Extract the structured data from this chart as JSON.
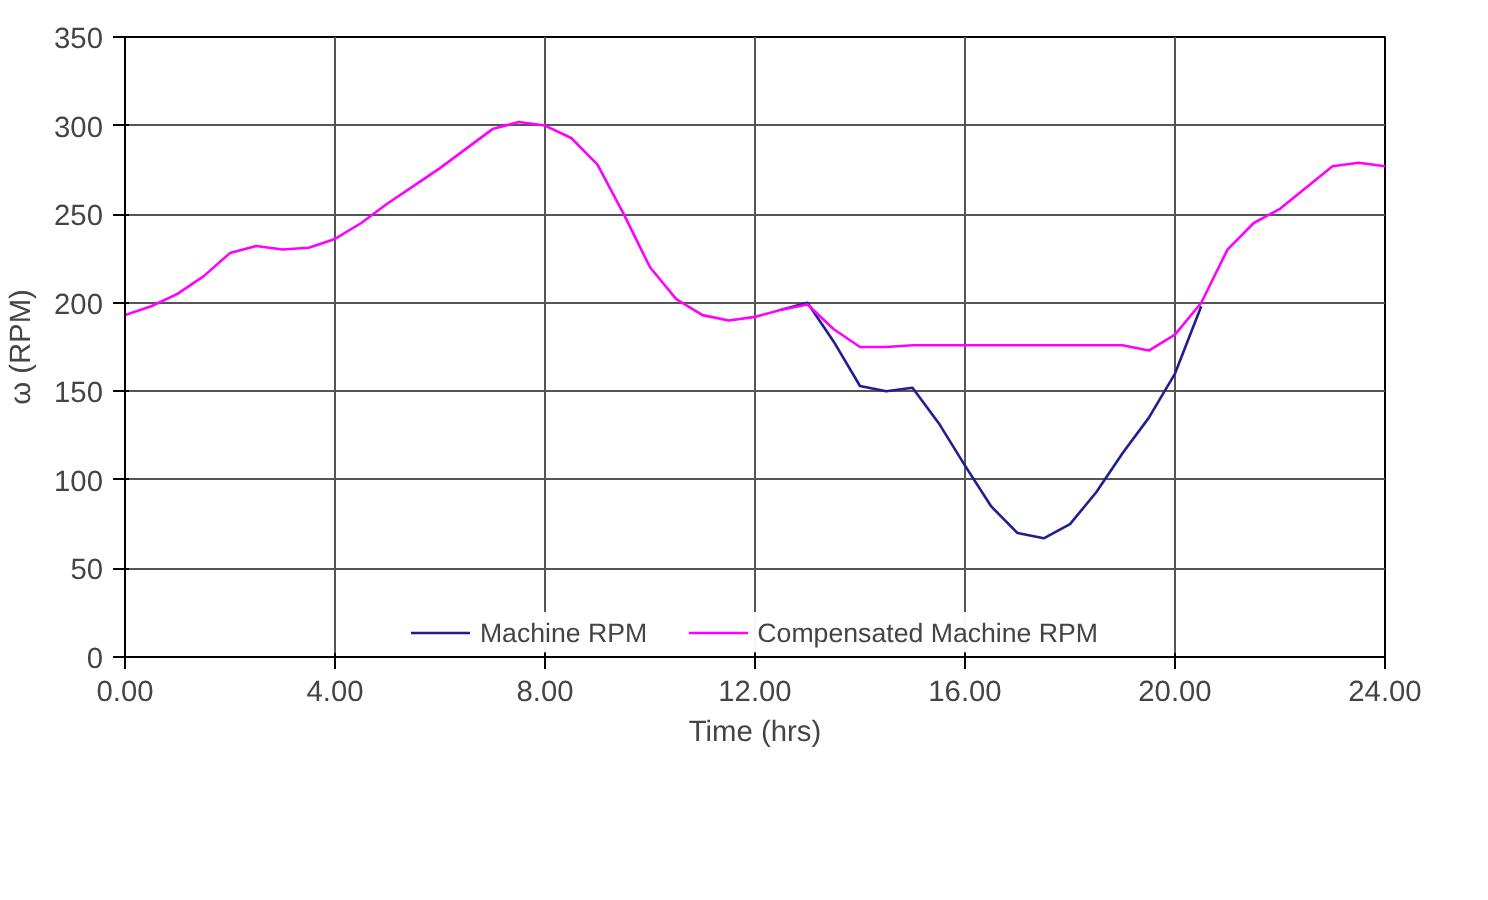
{
  "chart_data": {
    "type": "line",
    "xlabel": "Time (hrs)",
    "ylabel": "ω (RPM)",
    "x": [
      0,
      0.5,
      1,
      1.5,
      2,
      2.5,
      3,
      3.5,
      4,
      4.5,
      5,
      5.5,
      6,
      6.5,
      7,
      7.5,
      8,
      8.5,
      9,
      9.5,
      10,
      10.5,
      11,
      11.5,
      12,
      12.5,
      13,
      13.5,
      14,
      14.5,
      15,
      15.5,
      16,
      16.5,
      17,
      17.5,
      18,
      18.5,
      19,
      19.5,
      20,
      20.5,
      21,
      21.5,
      22,
      22.5,
      23,
      23.5,
      24
    ],
    "series": [
      {
        "name": "Machine RPM",
        "color": "#1f1f8f",
        "values": [
          null,
          null,
          null,
          null,
          null,
          null,
          null,
          null,
          null,
          null,
          null,
          null,
          null,
          null,
          null,
          null,
          null,
          null,
          null,
          null,
          null,
          null,
          null,
          null,
          null,
          196,
          200,
          178,
          153,
          150,
          152,
          132,
          108,
          85,
          70,
          67,
          75,
          93,
          115,
          135,
          160,
          198,
          null,
          null,
          null,
          null,
          null,
          null,
          null
        ]
      },
      {
        "name": "Compensated Machine RPM",
        "color": "#ff00ff",
        "values": [
          193,
          198,
          205,
          215,
          228,
          232,
          230,
          231,
          236,
          245,
          256,
          266,
          276,
          287,
          298,
          302,
          300,
          293,
          278,
          250,
          220,
          202,
          193,
          190,
          192,
          196,
          199,
          185,
          175,
          175,
          176,
          176,
          176,
          176,
          176,
          176,
          176,
          176,
          176,
          173,
          182,
          200,
          230,
          245,
          253,
          265,
          277,
          279,
          277
        ]
      }
    ],
    "xlim": [
      0,
      24
    ],
    "xticks": [
      {
        "value": 0,
        "label": "0.00"
      },
      {
        "value": 4,
        "label": "4.00"
      },
      {
        "value": 8,
        "label": "8.00"
      },
      {
        "value": 12,
        "label": "12.00"
      },
      {
        "value": 16,
        "label": "16.00"
      },
      {
        "value": 20,
        "label": "20.00"
      },
      {
        "value": 24,
        "label": "24.00"
      }
    ],
    "ylim": [
      0,
      350
    ],
    "yticks": [
      0,
      50,
      100,
      150,
      200,
      250,
      300,
      350
    ],
    "grid": true,
    "legend": "bottom",
    "line_style": "solid",
    "marker": "none"
  }
}
